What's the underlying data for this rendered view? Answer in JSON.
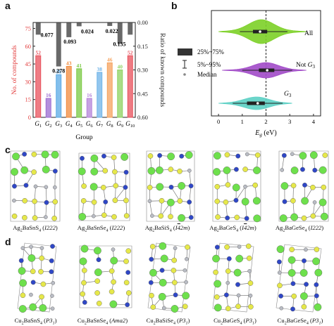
{
  "panels": {
    "a": {
      "label": "a"
    },
    "b": {
      "label": "b"
    },
    "c": {
      "label": "c"
    },
    "d": {
      "label": "d"
    }
  },
  "chart_data": [
    {
      "type": "bar",
      "categories": [
        "G1",
        "G2",
        "G3",
        "G4",
        "G5",
        "G6",
        "G7",
        "G8",
        "G9",
        "G10"
      ],
      "ylabel_left": "No. of compounds",
      "ylabel_right": "Ratio of known compounds",
      "xlabel": "Group",
      "ylim_left": [
        0,
        80
      ],
      "ylim_right": [
        0,
        0.6
      ],
      "left_ticks": [
        "0",
        "15",
        "30",
        "45",
        "60",
        "75"
      ],
      "right_ticks": [
        "0.00",
        "0.15",
        "0.30",
        "0.45",
        "0.60"
      ],
      "series": [
        {
          "values": [
            52,
            16,
            36,
            43,
            41,
            16,
            38,
            46,
            40,
            52
          ],
          "colors": [
            "#e8505b",
            "#9b6bd1",
            "#5aa9e6",
            "#f08a3c",
            "#7ac943",
            "#b483d9",
            "#6fb3e8",
            "#f5a25d",
            "#8ed15f",
            "#e8505b"
          ]
        },
        {
          "values": [
            0.077,
            0,
            0.278,
            0.093,
            0.024,
            0,
            0,
            0.022,
            0.135,
            0.077
          ]
        }
      ],
      "ratio_labels": [
        {
          "text": "0.077",
          "group": "G1-G2"
        },
        {
          "text": "0.278",
          "group": "G3"
        },
        {
          "text": "0.093",
          "group": "G4"
        },
        {
          "text": "0.024",
          "group": "G5-G6"
        },
        {
          "text": "0.022",
          "group": "G8"
        },
        {
          "text": "0.135",
          "group": "G9"
        }
      ]
    },
    {
      "type": "violin",
      "categories": [
        "All",
        "Not G3",
        "G3"
      ],
      "xlabel": "Eg (eV)",
      "xlim": [
        -0.3,
        4.3
      ],
      "x_ticks": [
        "0",
        "1",
        "2",
        "3",
        "4"
      ],
      "reference_line_x": 2.0,
      "colors": [
        "#7fd12b",
        "#a34ec9",
        "#5fd1c6"
      ],
      "legend": [
        "25%~75%",
        "5%~95%",
        "Median"
      ]
    }
  ],
  "structures_c": [
    {
      "formula": "Ag2BaSnS4",
      "group": "I222"
    },
    {
      "formula": "Ag2BaSnSe4",
      "group": "I222"
    },
    {
      "formula": "Ag2BaSiS4",
      "group": "I-42m"
    },
    {
      "formula": "Ag2BaGeS4",
      "group": "I-42m"
    },
    {
      "formula": "Ag2BaGeSe4",
      "group": "I222"
    }
  ],
  "structures_d": [
    {
      "formula": "Cu2BaSnS4",
      "group": "P31"
    },
    {
      "formula": "Cu2BaSnSe4",
      "group": "Ama2"
    },
    {
      "formula": "Cu2BaSiSe4",
      "group": "P31"
    },
    {
      "formula": "Cu2BaGeS4",
      "group": "P31"
    },
    {
      "formula": "Cu2BaGeSe4",
      "group": "P31"
    }
  ],
  "colors": {
    "ba": "#6ee04c",
    "chalc": "#e6e84a",
    "mx": "#2f47c6",
    "ag": "#b9bcc4",
    "bond": "#7a7a7a"
  }
}
